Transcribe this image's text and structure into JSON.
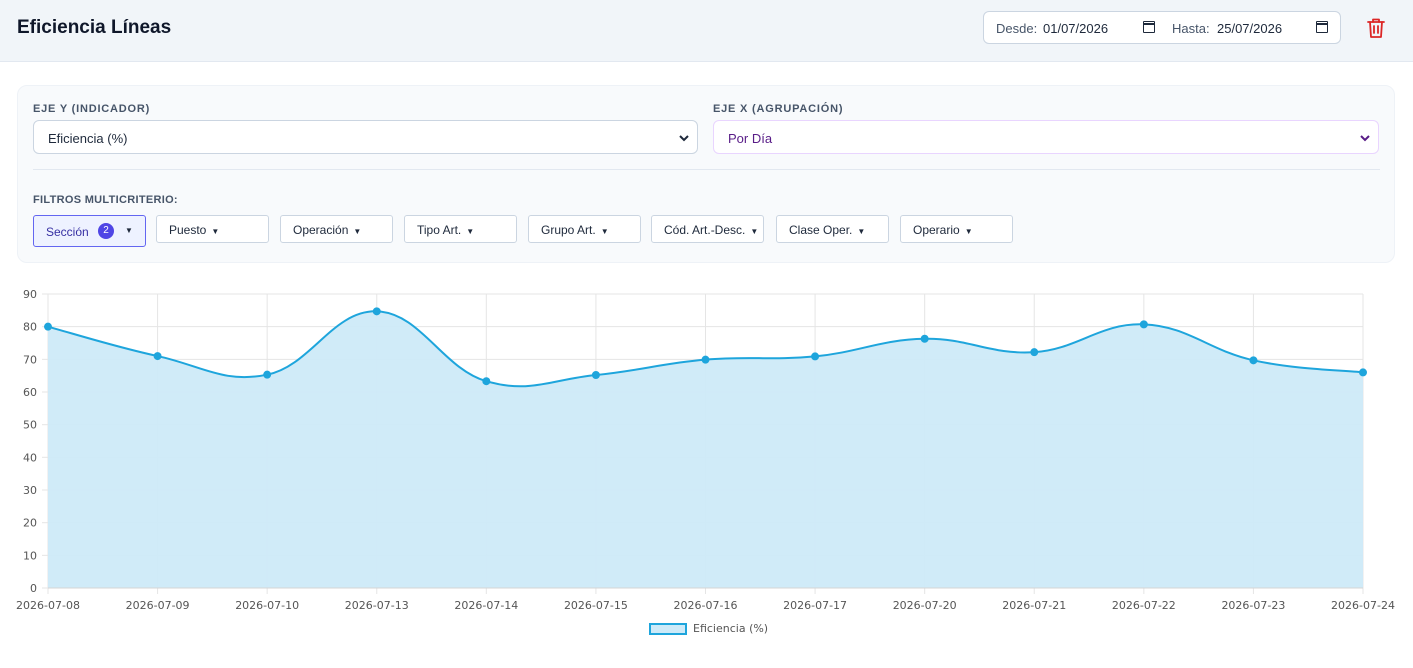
{
  "header": {
    "title": "Eficiencia Líneas",
    "desde_label": "Desde:",
    "desde_value": "01/07/2026",
    "hasta_label": "Hasta:",
    "hasta_value": "25/07/2026",
    "delete_icon": "trash-icon",
    "delete_color": "#dc2626"
  },
  "controls": {
    "y_axis_label": "EJE Y (INDICADOR)",
    "y_axis_value": "Eficiencia (%)",
    "x_axis_label": "EJE X (AGRUPACIÓN)",
    "x_axis_value": "Por Día",
    "filters_label": "FILTROS MULTICRITERIO:",
    "filters": [
      {
        "label": "Sección",
        "count": "2",
        "active": true
      },
      {
        "label": "Puesto"
      },
      {
        "label": "Operación"
      },
      {
        "label": "Tipo Art."
      },
      {
        "label": "Grupo Art."
      },
      {
        "label": "Cód. Art.-Desc."
      },
      {
        "label": "Clase Oper."
      },
      {
        "label": "Operario"
      }
    ]
  },
  "chart_data": {
    "type": "area",
    "categories": [
      "2026-07-08",
      "2026-07-09",
      "2026-07-10",
      "2026-07-13",
      "2026-07-14",
      "2026-07-15",
      "2026-07-16",
      "2026-07-17",
      "2026-07-20",
      "2026-07-21",
      "2026-07-22",
      "2026-07-23",
      "2026-07-24"
    ],
    "series": [
      {
        "name": "Eficiencia (%)",
        "values": [
          80,
          71,
          65.3,
          84.7,
          63.3,
          65.2,
          69.9,
          70.9,
          76.3,
          72.2,
          80.7,
          69.7,
          66
        ]
      }
    ],
    "ylim": [
      0,
      90
    ],
    "yticks": [
      0,
      10,
      20,
      30,
      40,
      50,
      60,
      70,
      80,
      90
    ],
    "grid": true,
    "legend": "bottom-center",
    "line_color": "#1ea5dc",
    "fill_color": "#cdeaf8"
  }
}
